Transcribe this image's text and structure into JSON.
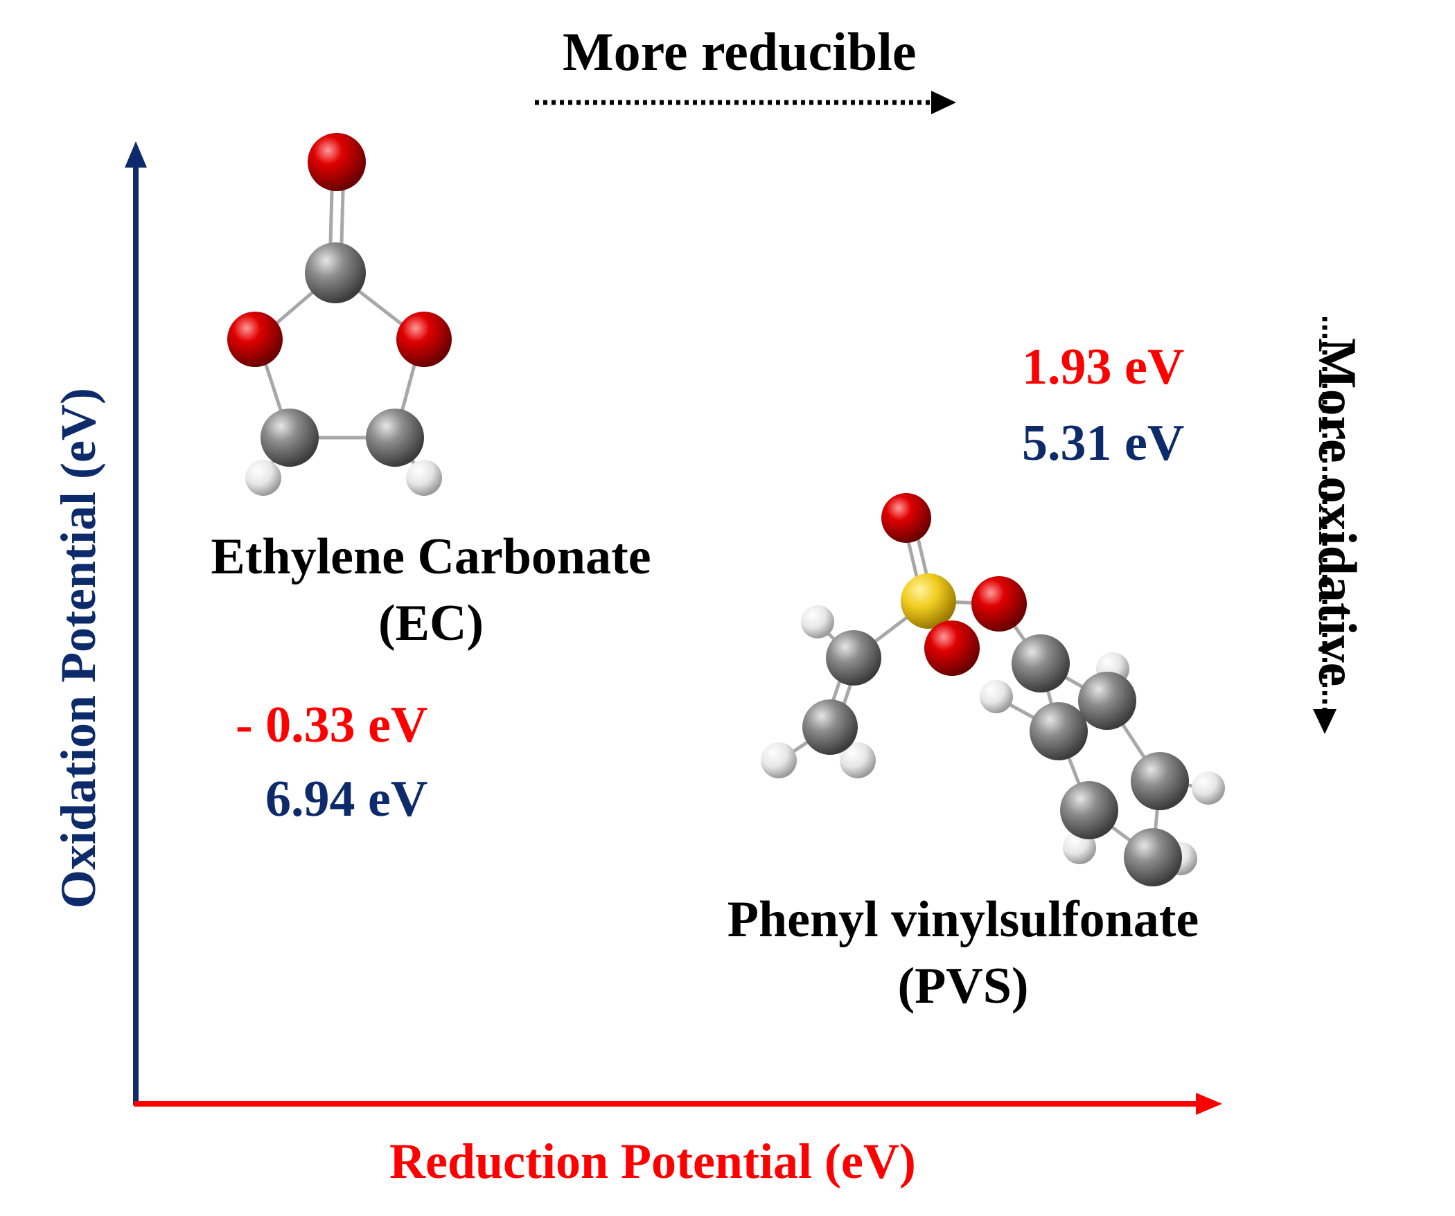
{
  "hints": {
    "top": "More reducible",
    "right": "More oxidative"
  },
  "axes": {
    "y_label": "Oxidation Potential (eV)",
    "x_label": "Reduction Potential (eV)"
  },
  "molecules": {
    "ec": {
      "name_line1": "Ethylene Carbonate",
      "name_line2": "(EC)",
      "reduction": "- 0.33 eV",
      "oxidation": "6.94 eV"
    },
    "pvs": {
      "name_line1": "Phenyl vinylsulfonate",
      "name_line2": "(PVS)",
      "reduction": "1.93 eV",
      "oxidation": "5.31 eV"
    }
  },
  "colors": {
    "reduction": "#ff0000",
    "oxidation": "#0d2b6b",
    "oxygen": "#e00000",
    "carbon": "#8c8c8c",
    "hydrogen": "#eeeeee",
    "sulfur": "#f2cc1f"
  }
}
